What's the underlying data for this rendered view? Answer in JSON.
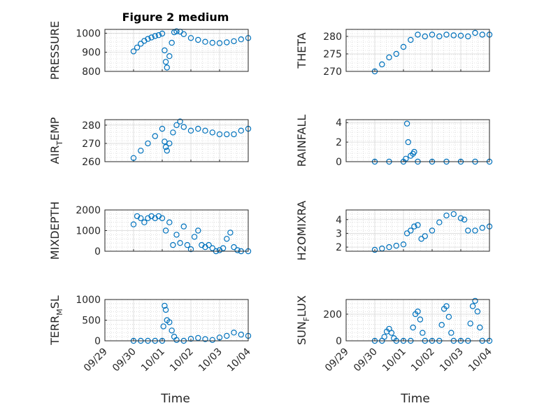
{
  "colors": {
    "marker": "#0072BD",
    "axis": "#262626",
    "grid": "#c8c8c8"
  },
  "figure": {
    "title": "Figure 2 medium",
    "xlabel": "Time",
    "date_ticks": [
      "09/29",
      "09/30",
      "10/01",
      "10/02",
      "10/03",
      "10/04"
    ]
  },
  "chart_data": [
    {
      "type": "scatter",
      "ylabel": "PRESSURE",
      "ylim": [
        800,
        1020
      ],
      "yticks": [
        "800",
        "900",
        "1000"
      ],
      "grid": true,
      "x": [
        "09/30 00:00",
        "09/30 03:00",
        "09/30 06:00",
        "09/30 09:00",
        "09/30 12:00",
        "09/30 15:00",
        "09/30 18:00",
        "09/30 21:00",
        "10/01 00:00",
        "10/01 02:00",
        "10/01 03:00",
        "10/01 04:00",
        "10/01 06:00",
        "10/01 08:00",
        "10/01 10:00",
        "10/01 12:00",
        "10/01 15:00",
        "10/01 18:00",
        "10/02 00:00",
        "10/02 06:00",
        "10/02 12:00",
        "10/02 18:00",
        "10/03 00:00",
        "10/03 06:00",
        "10/03 12:00",
        "10/03 18:00",
        "10/04 00:00"
      ],
      "y": [
        905,
        925,
        945,
        960,
        970,
        978,
        985,
        990,
        998,
        910,
        850,
        820,
        880,
        950,
        1005,
        1010,
        1008,
        995,
        975,
        965,
        955,
        950,
        948,
        952,
        958,
        968,
        975
      ]
    },
    {
      "type": "scatter",
      "ylabel": "THETA",
      "ylim": [
        270,
        282
      ],
      "yticks": [
        "270",
        "275",
        "280"
      ],
      "grid": true,
      "x": [
        "09/30 00:00",
        "09/30 06:00",
        "09/30 12:00",
        "09/30 18:00",
        "10/01 00:00",
        "10/01 06:00",
        "10/01 12:00",
        "10/01 18:00",
        "10/02 00:00",
        "10/02 06:00",
        "10/02 12:00",
        "10/02 18:00",
        "10/03 00:00",
        "10/03 06:00",
        "10/03 12:00",
        "10/03 18:00",
        "10/04 00:00"
      ],
      "y": [
        270,
        272,
        274,
        275,
        277,
        279,
        280.5,
        280,
        280.5,
        280,
        280.5,
        280.3,
        280.2,
        280,
        281,
        280.5,
        280.5
      ]
    },
    {
      "type": "scatter",
      "ylabel": "AIR",
      "ylabel_sub": "T",
      "ylabel_rest": "EMP",
      "ylim": [
        260,
        283
      ],
      "yticks": [
        "260",
        "270",
        "280"
      ],
      "grid": true,
      "x": [
        "09/30 00:00",
        "09/30 06:00",
        "09/30 12:00",
        "09/30 18:00",
        "10/01 00:00",
        "10/01 02:00",
        "10/01 03:00",
        "10/01 04:00",
        "10/01 06:00",
        "10/01 09:00",
        "10/01 12:00",
        "10/01 15:00",
        "10/01 18:00",
        "10/02 00:00",
        "10/02 06:00",
        "10/02 12:00",
        "10/02 18:00",
        "10/03 00:00",
        "10/03 06:00",
        "10/03 12:00",
        "10/03 18:00",
        "10/04 00:00"
      ],
      "y": [
        262,
        266,
        270,
        274,
        278,
        271,
        268,
        266,
        270,
        276,
        280,
        282,
        279,
        277,
        278,
        277,
        276,
        275,
        275,
        275,
        277,
        278
      ]
    },
    {
      "type": "scatter",
      "ylabel": "RAINFALL",
      "ylim": [
        0,
        4.3
      ],
      "yticks": [
        "0",
        "2",
        "4"
      ],
      "grid": true,
      "x": [
        "09/30 00:00",
        "09/30 12:00",
        "10/01 00:00",
        "10/01 02:00",
        "10/01 03:00",
        "10/01 04:00",
        "10/01 06:00",
        "10/01 08:00",
        "10/01 09:00",
        "10/01 12:00",
        "10/02 00:00",
        "10/02 12:00",
        "10/03 00:00",
        "10/03 12:00",
        "10/04 00:00"
      ],
      "y": [
        0,
        0,
        0,
        0.3,
        3.9,
        2.0,
        0.6,
        0.8,
        1.0,
        0,
        0,
        0,
        0,
        0,
        0
      ]
    },
    {
      "type": "scatter",
      "ylabel": "MIXDEPTH",
      "ylim": [
        0,
        2000
      ],
      "yticks": [
        "0",
        "1000",
        "2000"
      ],
      "grid": true,
      "x": [
        "09/30 00:00",
        "09/30 03:00",
        "09/30 06:00",
        "09/30 09:00",
        "09/30 12:00",
        "09/30 15:00",
        "09/30 18:00",
        "09/30 21:00",
        "10/01 00:00",
        "10/01 03:00",
        "10/01 06:00",
        "10/01 09:00",
        "10/01 12:00",
        "10/01 15:00",
        "10/01 18:00",
        "10/01 21:00",
        "10/02 00:00",
        "10/02 03:00",
        "10/02 06:00",
        "10/02 09:00",
        "10/02 12:00",
        "10/02 15:00",
        "10/02 18:00",
        "10/02 21:00",
        "10/03 00:00",
        "10/03 03:00",
        "10/03 06:00",
        "10/03 09:00",
        "10/03 12:00",
        "10/03 15:00",
        "10/03 18:00",
        "10/04 00:00"
      ],
      "y": [
        1300,
        1700,
        1600,
        1400,
        1600,
        1700,
        1600,
        1700,
        1600,
        1000,
        1400,
        300,
        800,
        400,
        1200,
        300,
        100,
        700,
        1000,
        300,
        200,
        300,
        150,
        0,
        50,
        150,
        600,
        900,
        200,
        50,
        0,
        0
      ]
    },
    {
      "type": "scatter",
      "ylabel": "H2OMIXRA",
      "ylim": [
        1.7,
        4.7
      ],
      "yticks": [
        "2",
        "3",
        "4"
      ],
      "grid": true,
      "x": [
        "09/30 00:00",
        "09/30 06:00",
        "09/30 12:00",
        "09/30 18:00",
        "10/01 00:00",
        "10/01 03:00",
        "10/01 06:00",
        "10/01 09:00",
        "10/01 12:00",
        "10/01 15:00",
        "10/01 18:00",
        "10/02 00:00",
        "10/02 06:00",
        "10/02 12:00",
        "10/02 18:00",
        "10/03 00:00",
        "10/03 03:00",
        "10/03 06:00",
        "10/03 12:00",
        "10/03 18:00",
        "10/04 00:00"
      ],
      "y": [
        1.8,
        1.9,
        2.0,
        2.1,
        2.2,
        3.0,
        3.2,
        3.5,
        3.6,
        2.6,
        2.8,
        3.2,
        3.8,
        4.3,
        4.4,
        4.1,
        4.0,
        3.2,
        3.2,
        3.4,
        3.5
      ]
    },
    {
      "type": "scatter",
      "ylabel": "TERR",
      "ylabel_sub": "M",
      "ylabel_rest": "SL",
      "ylim": [
        0,
        1000
      ],
      "yticks": [
        "0",
        "500",
        "1000"
      ],
      "grid": true,
      "x": [
        "09/30 00:00",
        "09/30 06:00",
        "09/30 12:00",
        "09/30 18:00",
        "10/01 00:00",
        "10/01 01:00",
        "10/01 02:00",
        "10/01 03:00",
        "10/01 04:00",
        "10/01 06:00",
        "10/01 08:00",
        "10/01 10:00",
        "10/01 12:00",
        "10/01 18:00",
        "10/02 00:00",
        "10/02 06:00",
        "10/02 12:00",
        "10/02 18:00",
        "10/03 00:00",
        "10/03 06:00",
        "10/03 12:00",
        "10/03 18:00",
        "10/04 00:00"
      ],
      "y": [
        0,
        0,
        0,
        0,
        0,
        350,
        850,
        750,
        500,
        450,
        250,
        100,
        20,
        0,
        50,
        70,
        40,
        20,
        80,
        120,
        200,
        150,
        120
      ]
    },
    {
      "type": "scatter",
      "ylabel": "SUN",
      "ylabel_sub": "F",
      "ylabel_rest": "LUX",
      "ylim": [
        0,
        310
      ],
      "yticks": [
        "0",
        "200"
      ],
      "grid": true,
      "x": [
        "09/30 00:00",
        "09/30 06:00",
        "09/30 08:00",
        "09/30 10:00",
        "09/30 12:00",
        "09/30 14:00",
        "09/30 16:00",
        "09/30 18:00",
        "10/01 00:00",
        "10/01 06:00",
        "10/01 08:00",
        "10/01 10:00",
        "10/01 12:00",
        "10/01 14:00",
        "10/01 16:00",
        "10/01 18:00",
        "10/02 00:00",
        "10/02 06:00",
        "10/02 08:00",
        "10/02 10:00",
        "10/02 12:00",
        "10/02 14:00",
        "10/02 16:00",
        "10/02 18:00",
        "10/03 00:00",
        "10/03 06:00",
        "10/03 08:00",
        "10/03 10:00",
        "10/03 12:00",
        "10/03 14:00",
        "10/03 16:00",
        "10/03 18:00",
        "10/04 00:00"
      ],
      "y": [
        0,
        0,
        30,
        70,
        90,
        60,
        20,
        0,
        0,
        0,
        100,
        200,
        220,
        160,
        60,
        0,
        0,
        0,
        120,
        240,
        260,
        180,
        60,
        0,
        0,
        0,
        130,
        260,
        300,
        220,
        100,
        0,
        0
      ]
    }
  ]
}
